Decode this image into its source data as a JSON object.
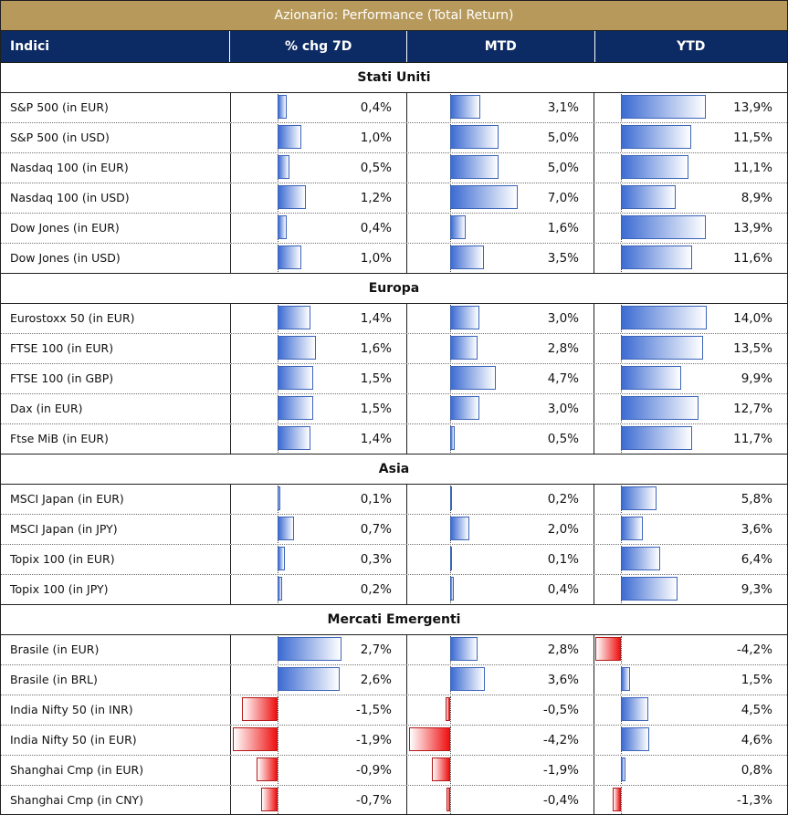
{
  "table": {
    "title": "Azionario: Performance (Total Return)",
    "headers": {
      "name": "Indici",
      "c1": "% chg 7D",
      "c2": "MTD",
      "c3": "YTD"
    },
    "colors": {
      "title_bg": "#b79a5b",
      "header_bg": "#0c2a63",
      "positive_bar": "#3c6bd2",
      "negative_bar": "#ee1111"
    },
    "sections": [
      {
        "name": "Stati Uniti",
        "rows": [
          {
            "name": "S&P 500 (in EUR)",
            "v1": 0.4,
            "t1": "0,4%",
            "v2": 3.1,
            "t2": "3,1%",
            "v3": 13.9,
            "t3": "13,9%"
          },
          {
            "name": "S&P 500 (in USD)",
            "v1": 1.0,
            "t1": "1,0%",
            "v2": 5.0,
            "t2": "5,0%",
            "v3": 11.5,
            "t3": "11,5%"
          },
          {
            "name": "Nasdaq 100 (in EUR)",
            "v1": 0.5,
            "t1": "0,5%",
            "v2": 5.0,
            "t2": "5,0%",
            "v3": 11.1,
            "t3": "11,1%"
          },
          {
            "name": "Nasdaq 100 (in USD)",
            "v1": 1.2,
            "t1": "1,2%",
            "v2": 7.0,
            "t2": "7,0%",
            "v3": 8.9,
            "t3": "8,9%"
          },
          {
            "name": "Dow Jones (in EUR)",
            "v1": 0.4,
            "t1": "0,4%",
            "v2": 1.6,
            "t2": "1,6%",
            "v3": 13.9,
            "t3": "13,9%"
          },
          {
            "name": "Dow Jones (in USD)",
            "v1": 1.0,
            "t1": "1,0%",
            "v2": 3.5,
            "t2": "3,5%",
            "v3": 11.6,
            "t3": "11,6%"
          }
        ]
      },
      {
        "name": "Europa",
        "rows": [
          {
            "name": "Eurostoxx 50 (in EUR)",
            "v1": 1.4,
            "t1": "1,4%",
            "v2": 3.0,
            "t2": "3,0%",
            "v3": 14.0,
            "t3": "14,0%"
          },
          {
            "name": "FTSE 100 (in EUR)",
            "v1": 1.6,
            "t1": "1,6%",
            "v2": 2.8,
            "t2": "2,8%",
            "v3": 13.5,
            "t3": "13,5%"
          },
          {
            "name": "FTSE 100 (in GBP)",
            "v1": 1.5,
            "t1": "1,5%",
            "v2": 4.7,
            "t2": "4,7%",
            "v3": 9.9,
            "t3": "9,9%"
          },
          {
            "name": "Dax (in EUR)",
            "v1": 1.5,
            "t1": "1,5%",
            "v2": 3.0,
            "t2": "3,0%",
            "v3": 12.7,
            "t3": "12,7%"
          },
          {
            "name": "Ftse MiB (in EUR)",
            "v1": 1.4,
            "t1": "1,4%",
            "v2": 0.5,
            "t2": "0,5%",
            "v3": 11.7,
            "t3": "11,7%"
          }
        ]
      },
      {
        "name": "Asia",
        "rows": [
          {
            "name": "MSCI Japan (in EUR)",
            "v1": 0.1,
            "t1": "0,1%",
            "v2": 0.2,
            "t2": "0,2%",
            "v3": 5.8,
            "t3": "5,8%"
          },
          {
            "name": "MSCI Japan (in JPY)",
            "v1": 0.7,
            "t1": "0,7%",
            "v2": 2.0,
            "t2": "2,0%",
            "v3": 3.6,
            "t3": "3,6%"
          },
          {
            "name": "Topix 100 (in EUR)",
            "v1": 0.3,
            "t1": "0,3%",
            "v2": 0.1,
            "t2": "0,1%",
            "v3": 6.4,
            "t3": "6,4%"
          },
          {
            "name": "Topix 100 (in JPY)",
            "v1": 0.2,
            "t1": "0,2%",
            "v2": 0.4,
            "t2": "0,4%",
            "v3": 9.3,
            "t3": "9,3%"
          }
        ]
      },
      {
        "name": "Mercati Emergenti",
        "rows": [
          {
            "name": "Brasile (in EUR)",
            "v1": 2.7,
            "t1": "2,7%",
            "v2": 2.8,
            "t2": "2,8%",
            "v3": -4.2,
            "t3": "-4,2%"
          },
          {
            "name": "Brasile (in BRL)",
            "v1": 2.6,
            "t1": "2,6%",
            "v2": 3.6,
            "t2": "3,6%",
            "v3": 1.5,
            "t3": "1,5%"
          },
          {
            "name": "India Nifty 50 (in INR)",
            "v1": -1.5,
            "t1": "-1,5%",
            "v2": -0.5,
            "t2": "-0,5%",
            "v3": 4.5,
            "t3": "4,5%"
          },
          {
            "name": "India Nifty 50 (in EUR)",
            "v1": -1.9,
            "t1": "-1,9%",
            "v2": -4.2,
            "t2": "-4,2%",
            "v3": 4.6,
            "t3": "4,6%"
          },
          {
            "name": "Shanghai Cmp (in EUR)",
            "v1": -0.9,
            "t1": "-0,9%",
            "v2": -1.9,
            "t2": "-1,9%",
            "v3": 0.8,
            "t3": "0,8%"
          },
          {
            "name": "Shanghai Cmp (in CNY)",
            "v1": -0.7,
            "t1": "-0,7%",
            "v2": -0.4,
            "t2": "-0,4%",
            "v3": -1.3,
            "t3": "-1,3%"
          }
        ]
      }
    ]
  }
}
